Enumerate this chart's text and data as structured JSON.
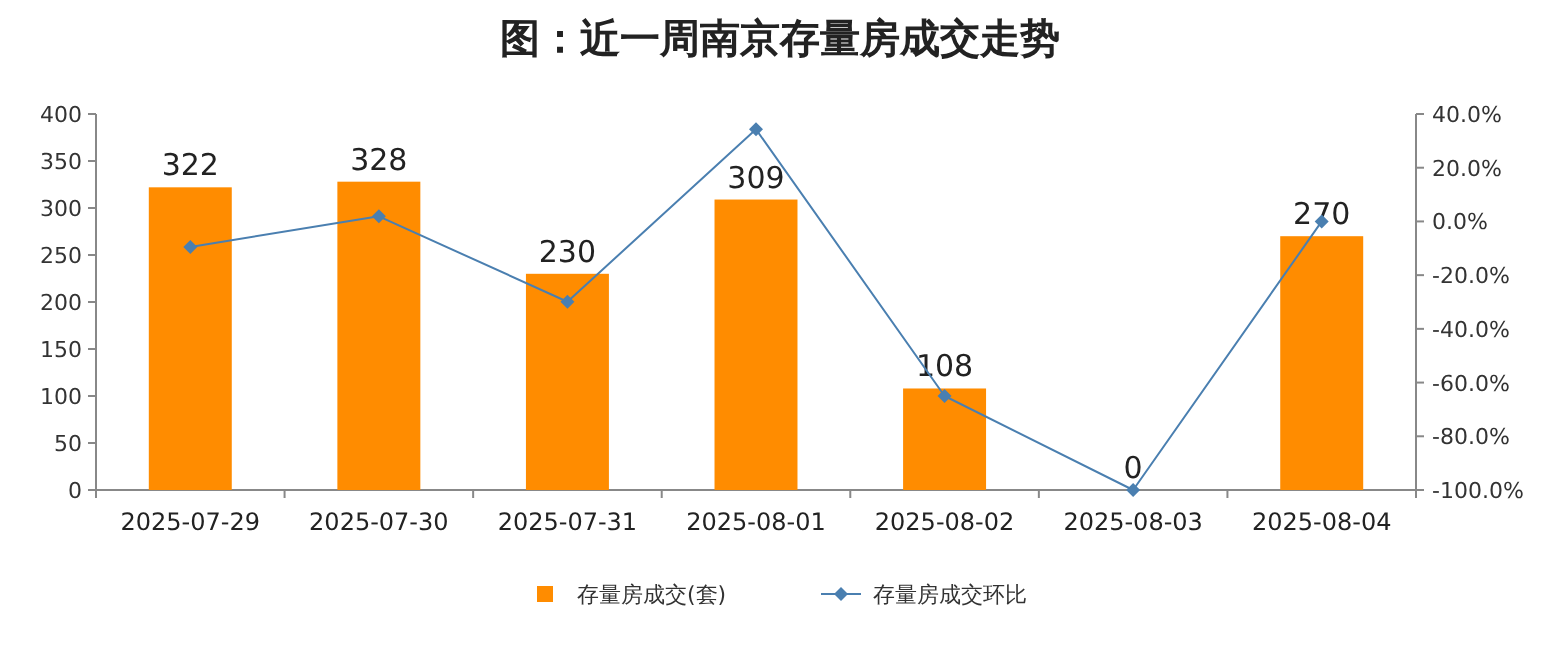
{
  "chart_data": {
    "type": "bar",
    "title": "图：近一周南京存量房成交走势",
    "categories": [
      "2025-07-29",
      "2025-07-30",
      "2025-07-31",
      "2025-08-01",
      "2025-08-02",
      "2025-08-03",
      "2025-08-04"
    ],
    "series": [
      {
        "name": "存量房成交(套)",
        "color": "#ff8c00",
        "values": [
          322,
          328,
          230,
          309,
          108,
          0,
          270
        ],
        "value_labels": [
          "322",
          "328",
          "230",
          "309",
          "108",
          "0",
          "270"
        ]
      },
      {
        "name": "存量房成交环比",
        "type": "line",
        "axis": "y2",
        "color": "#4a7fb0",
        "marker": "diamond",
        "values": [
          -9.5,
          1.9,
          -29.9,
          34.3,
          -65.0,
          -100,
          0
        ]
      }
    ],
    "ylim": [
      0,
      400
    ],
    "yticks": [
      0,
      50,
      100,
      150,
      200,
      250,
      300,
      350,
      400
    ],
    "y2lim": [
      -100,
      40
    ],
    "y2ticks": [
      {
        "value": -100,
        "label": "-100.0%"
      },
      {
        "value": -80,
        "label": "-80.0%"
      },
      {
        "value": -60,
        "label": "-60.0%"
      },
      {
        "value": -40,
        "label": "-40.0%"
      },
      {
        "value": -20,
        "label": "-20.0%"
      },
      {
        "value": 0,
        "label": "0.0%"
      },
      {
        "value": 20,
        "label": "20.0%"
      },
      {
        "value": 40,
        "label": "40.0%"
      }
    ],
    "legend": "bottom",
    "grid": false
  }
}
